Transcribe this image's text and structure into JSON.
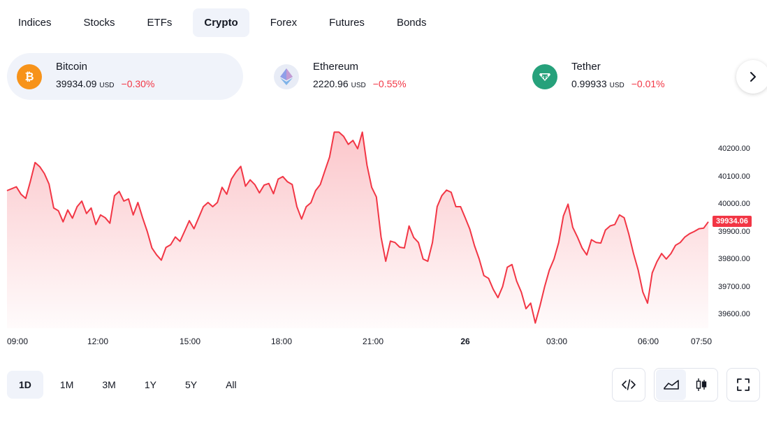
{
  "tabs": [
    {
      "label": "Indices",
      "active": false
    },
    {
      "label": "Stocks",
      "active": false
    },
    {
      "label": "ETFs",
      "active": false
    },
    {
      "label": "Crypto",
      "active": true
    },
    {
      "label": "Forex",
      "active": false
    },
    {
      "label": "Futures",
      "active": false
    },
    {
      "label": "Bonds",
      "active": false
    }
  ],
  "assets": [
    {
      "name": "Bitcoin",
      "price": "39934.09",
      "currency": "USD",
      "change": "−0.30%",
      "logo_color": "#f7931a",
      "icon": "bitcoin-icon",
      "active": true
    },
    {
      "name": "Ethereum",
      "price": "2220.96",
      "currency": "USD",
      "change": "−0.55%",
      "logo_color": "#e8ecf6",
      "icon": "ethereum-icon",
      "active": false
    },
    {
      "name": "Tether",
      "price": "0.99933",
      "currency": "USD",
      "change": "−0.01%",
      "logo_color": "#26a17b",
      "icon": "tether-icon",
      "active": false
    }
  ],
  "next_icon": "chevron-right-icon",
  "chart_data": {
    "type": "area",
    "title": "",
    "xlabel": "",
    "ylabel": "",
    "color": "#f23645",
    "x_ticks": [
      "09:00",
      "12:00",
      "15:00",
      "18:00",
      "21:00",
      "26",
      "03:00",
      "06:00",
      "07:50"
    ],
    "y_ticks": [
      "40200.00",
      "40100.00",
      "40000.00",
      "39900.00",
      "39800.00",
      "39700.00",
      "39600.00"
    ],
    "ylim": [
      39560,
      40270
    ],
    "last_price": "39934.06",
    "series": [
      {
        "values": [
          40048,
          40055,
          40062,
          40035,
          40020,
          40082,
          40150,
          40135,
          40110,
          40072,
          39985,
          39975,
          39935,
          39978,
          39948,
          39990,
          40010,
          39965,
          39985,
          39925,
          39960,
          39950,
          39930,
          40030,
          40045,
          40010,
          40018,
          39960,
          40005,
          39950,
          39900,
          39840,
          39815,
          39796,
          39842,
          39852,
          39880,
          39864,
          39901,
          39939,
          39910,
          39950,
          39990,
          40005,
          39990,
          40005,
          40060,
          40035,
          40090,
          40116,
          40136,
          40064,
          40087,
          40070,
          40040,
          40068,
          40074,
          40037,
          40090,
          40099,
          40080,
          40070,
          39990,
          39945,
          39990,
          40004,
          40048,
          40070,
          40120,
          40170,
          40260,
          40260,
          40245,
          40216,
          40230,
          40200,
          40260,
          40140,
          40060,
          40025,
          39880,
          39792,
          39865,
          39860,
          39843,
          39840,
          39920,
          39878,
          39860,
          39800,
          39792,
          39860,
          39990,
          40030,
          40050,
          40042,
          39990,
          39990,
          39950,
          39908,
          39848,
          39800,
          39740,
          39730,
          39690,
          39660,
          39700,
          39770,
          39780,
          39720,
          39680,
          39620,
          39640,
          39568,
          39630,
          39700,
          39760,
          39800,
          39860,
          39956,
          39999,
          39915,
          39880,
          39840,
          39815,
          39870,
          39860,
          39858,
          39905,
          39920,
          39925,
          39960,
          39950,
          39890,
          39820,
          39760,
          39680,
          39640,
          39750,
          39790,
          39820,
          39800,
          39820,
          39850,
          39860,
          39880,
          39892,
          39900,
          39910,
          39912,
          39935
        ]
      }
    ]
  },
  "ranges": [
    {
      "label": "1D",
      "active": true
    },
    {
      "label": "1M",
      "active": false
    },
    {
      "label": "3M",
      "active": false
    },
    {
      "label": "1Y",
      "active": false
    },
    {
      "label": "5Y",
      "active": false
    },
    {
      "label": "All",
      "active": false
    }
  ],
  "tools": {
    "embed_icon": "code-icon",
    "area_icon": "area-chart-icon",
    "candle_icon": "candlestick-icon",
    "fullscreen_icon": "fullscreen-icon"
  }
}
